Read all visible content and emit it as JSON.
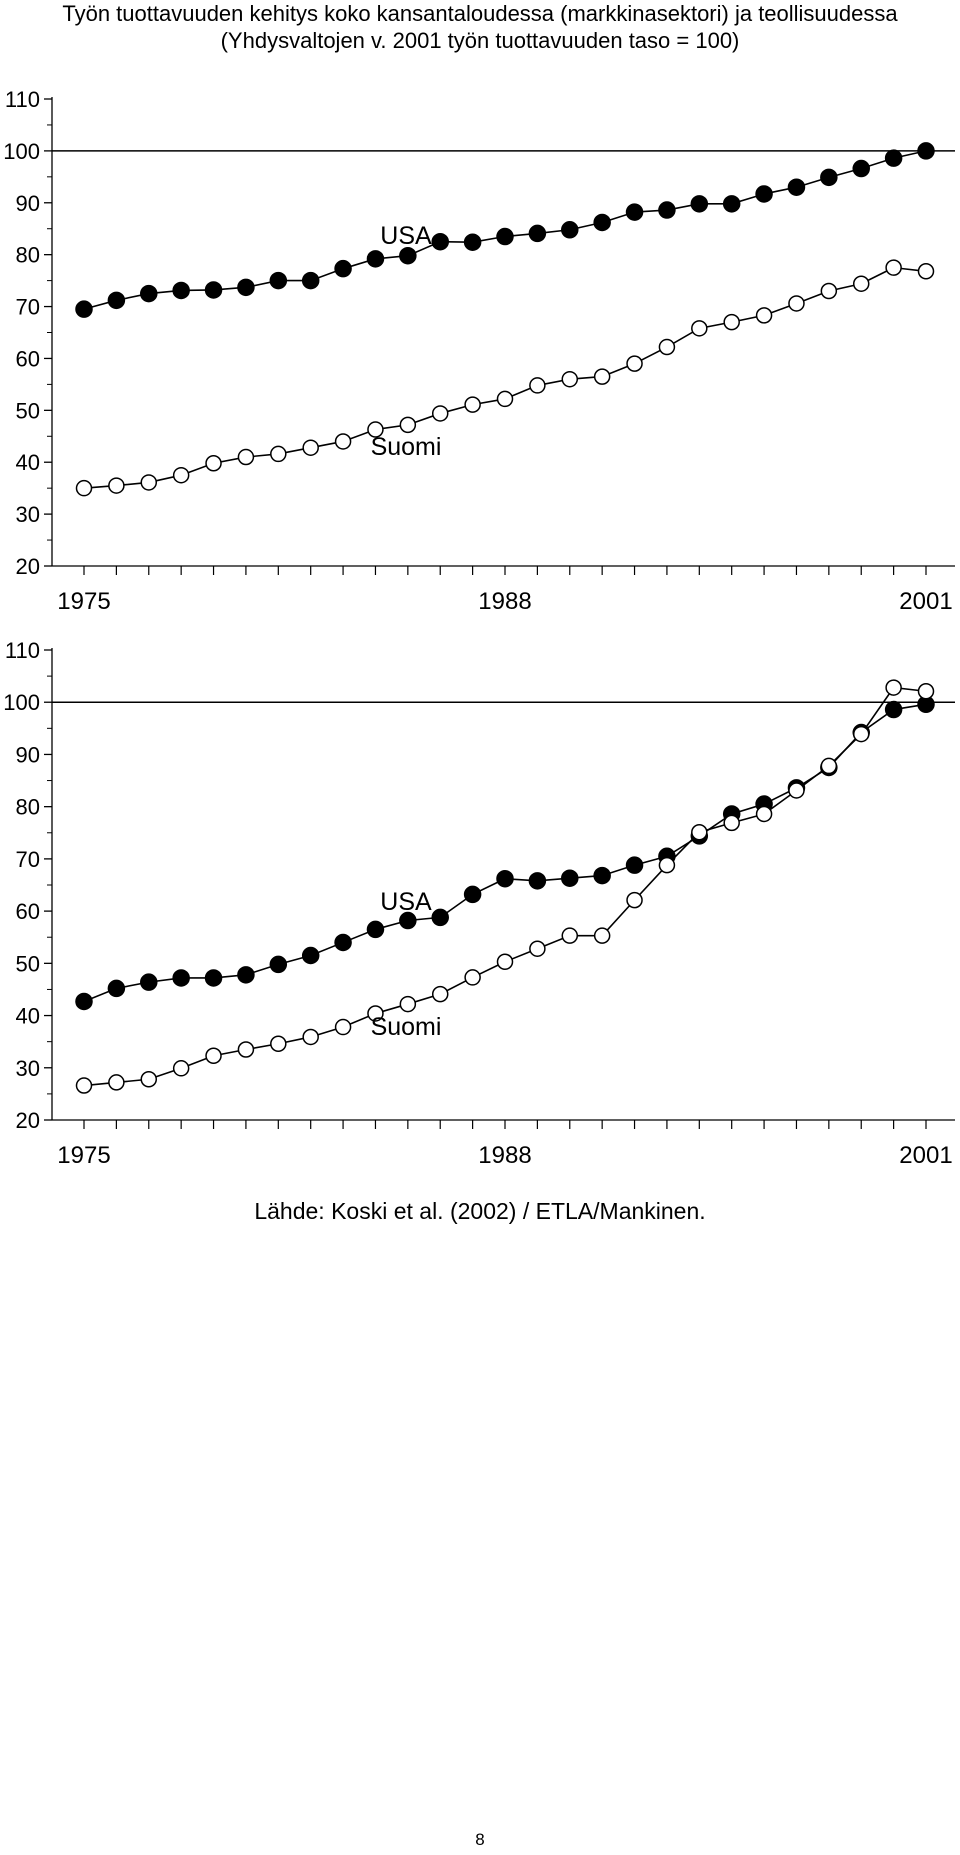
{
  "title": {
    "line1": "Työn tuottavuuden kehitys koko kansantaloudessa (markkinasektori) ja teollisuudessa",
    "line2": "(Yhdysvaltojen v. 2001 työn tuottavuuden taso = 100)"
  },
  "chart_data": [
    {
      "type": "line",
      "x": [
        1975,
        1976,
        1977,
        1978,
        1979,
        1980,
        1981,
        1982,
        1983,
        1984,
        1985,
        1986,
        1987,
        1988,
        1989,
        1990,
        1991,
        1992,
        1993,
        1994,
        1995,
        1996,
        1997,
        1998,
        1999,
        2000,
        2001
      ],
      "x_tick_labels": [
        "1975",
        "1988",
        "2001"
      ],
      "y_tick_labels": [
        "110",
        "100",
        "90",
        "80",
        "70",
        "60",
        "50",
        "40",
        "30",
        "20"
      ],
      "ylim": [
        20,
        110
      ],
      "reference_line": 100,
      "series": [
        {
          "name": "USA",
          "marker": "filled-circle",
          "values": [
            69.5,
            71.2,
            72.5,
            73.1,
            73.2,
            73.7,
            75.0,
            75.0,
            77.3,
            79.2,
            79.8,
            82.5,
            82.4,
            83.5,
            84.1,
            84.8,
            86.2,
            88.2,
            88.6,
            89.8,
            89.8,
            91.7,
            93.0,
            94.9,
            96.6,
            98.6,
            100.0
          ]
        },
        {
          "name": "Suomi",
          "marker": "open-circle",
          "values": [
            35.0,
            35.5,
            36.1,
            37.5,
            39.8,
            41.0,
            41.6,
            42.8,
            44.0,
            46.3,
            47.2,
            49.4,
            51.1,
            52.2,
            54.8,
            56.0,
            56.5,
            59.0,
            62.2,
            65.8,
            67.0,
            68.3,
            70.6,
            73.0,
            74.4,
            77.5,
            76.8
          ]
        }
      ]
    },
    {
      "type": "line",
      "x": [
        1975,
        1976,
        1977,
        1978,
        1979,
        1980,
        1981,
        1982,
        1983,
        1984,
        1985,
        1986,
        1987,
        1988,
        1989,
        1990,
        1991,
        1992,
        1993,
        1994,
        1995,
        1996,
        1997,
        1998,
        1999,
        2000,
        2001
      ],
      "x_tick_labels": [
        "1975",
        "1988",
        "2001"
      ],
      "y_tick_labels": [
        "110",
        "100",
        "90",
        "80",
        "70",
        "60",
        "50",
        "40",
        "30",
        "20"
      ],
      "ylim": [
        20,
        110
      ],
      "reference_line": 100,
      "series": [
        {
          "name": "USA",
          "marker": "filled-circle",
          "values": [
            42.7,
            45.2,
            46.4,
            47.2,
            47.2,
            47.8,
            49.8,
            51.5,
            54.0,
            56.5,
            58.2,
            58.8,
            63.2,
            66.2,
            65.8,
            66.3,
            66.8,
            68.8,
            70.5,
            74.4,
            78.6,
            80.5,
            83.6,
            87.5,
            94.2,
            98.6,
            99.6
          ]
        },
        {
          "name": "Suomi",
          "marker": "open-circle",
          "values": [
            26.6,
            27.2,
            27.8,
            29.9,
            32.3,
            33.5,
            34.6,
            35.9,
            37.8,
            40.4,
            42.2,
            44.1,
            47.3,
            50.3,
            52.8,
            55.3,
            55.3,
            62.1,
            68.8,
            75.1,
            76.9,
            78.6,
            83.1,
            87.8,
            93.9,
            102.8,
            102.1
          ]
        }
      ]
    }
  ],
  "source": "Lähde: Koski et al. (2002) / ETLA/Mankinen.",
  "page_number": "8"
}
